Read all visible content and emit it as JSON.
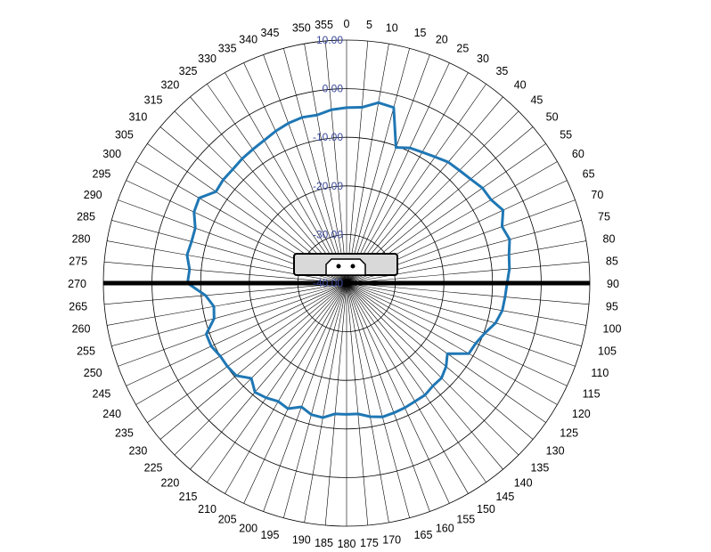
{
  "chart_data": {
    "type": "polar-line",
    "angle_unit": "degrees",
    "angle_zero": "top",
    "angle_direction": "clockwise",
    "angle_ticks": [
      0,
      5,
      10,
      15,
      20,
      25,
      30,
      35,
      40,
      45,
      50,
      55,
      60,
      65,
      70,
      75,
      80,
      85,
      90,
      95,
      100,
      105,
      110,
      115,
      120,
      125,
      130,
      135,
      140,
      145,
      150,
      155,
      160,
      165,
      170,
      175,
      180,
      185,
      190,
      195,
      200,
      205,
      210,
      215,
      220,
      225,
      230,
      235,
      240,
      245,
      250,
      255,
      260,
      265,
      270,
      275,
      280,
      285,
      290,
      295,
      300,
      305,
      310,
      315,
      320,
      325,
      330,
      335,
      340,
      345,
      350,
      355
    ],
    "radial_range": [
      -40,
      10
    ],
    "radial_ticks": [
      {
        "value": 10,
        "label": "10.00"
      },
      {
        "value": 0,
        "label": "0.00"
      },
      {
        "value": -10,
        "label": "-10.00"
      },
      {
        "value": -20,
        "label": "-20.00"
      },
      {
        "value": -30,
        "label": "-30.00"
      },
      {
        "value": -40,
        "label": "-40.00"
      }
    ],
    "grid": true,
    "series": [
      {
        "color": "#1f77b4",
        "points": [
          {
            "angle": 0,
            "value": -3.9
          },
          {
            "angle": 5,
            "value": -3.7
          },
          {
            "angle": 10,
            "value": -2.3
          },
          {
            "angle": 15,
            "value": -2.6
          },
          {
            "angle": 20,
            "value": -10.3
          },
          {
            "angle": 25,
            "value": -9.3
          },
          {
            "angle": 30,
            "value": -8.9
          },
          {
            "angle": 35,
            "value": -8.3
          },
          {
            "angle": 40,
            "value": -7.5
          },
          {
            "angle": 45,
            "value": -7.2
          },
          {
            "angle": 50,
            "value": -6.7
          },
          {
            "angle": 55,
            "value": -5.9
          },
          {
            "angle": 60,
            "value": -5.7
          },
          {
            "angle": 65,
            "value": -4.5
          },
          {
            "angle": 70,
            "value": -6.0
          },
          {
            "angle": 75,
            "value": -5.3
          },
          {
            "angle": 80,
            "value": -6.1
          },
          {
            "angle": 85,
            "value": -6.4
          },
          {
            "angle": 90,
            "value": -7.0
          },
          {
            "angle": 95,
            "value": -7.3
          },
          {
            "angle": 100,
            "value": -7.5
          },
          {
            "angle": 105,
            "value": -8.3
          },
          {
            "angle": 110,
            "value": -9.8
          },
          {
            "angle": 115,
            "value": -10.7
          },
          {
            "angle": 120,
            "value": -11.0
          },
          {
            "angle": 125,
            "value": -14.7
          },
          {
            "angle": 130,
            "value": -13.3
          },
          {
            "angle": 135,
            "value": -12.4
          },
          {
            "angle": 140,
            "value": -12.4
          },
          {
            "angle": 145,
            "value": -11.9
          },
          {
            "angle": 150,
            "value": -11.9
          },
          {
            "angle": 155,
            "value": -11.7
          },
          {
            "angle": 160,
            "value": -11.6
          },
          {
            "angle": 165,
            "value": -11.5
          },
          {
            "angle": 170,
            "value": -12.1
          },
          {
            "angle": 175,
            "value": -13.0
          },
          {
            "angle": 180,
            "value": -13.0
          },
          {
            "angle": 185,
            "value": -13.0
          },
          {
            "angle": 190,
            "value": -11.9
          },
          {
            "angle": 195,
            "value": -12.0
          },
          {
            "angle": 200,
            "value": -12.9
          },
          {
            "angle": 205,
            "value": -11.5
          },
          {
            "angle": 210,
            "value": -11.9
          },
          {
            "angle": 215,
            "value": -11.2
          },
          {
            "angle": 220,
            "value": -10.7
          },
          {
            "angle": 225,
            "value": -12.3
          },
          {
            "angle": 230,
            "value": -10.4
          },
          {
            "angle": 235,
            "value": -10.1
          },
          {
            "angle": 240,
            "value": -10.0
          },
          {
            "angle": 245,
            "value": -9.3
          },
          {
            "angle": 250,
            "value": -9.3
          },
          {
            "angle": 255,
            "value": -11.8
          },
          {
            "angle": 260,
            "value": -12.3
          },
          {
            "angle": 265,
            "value": -10.9
          },
          {
            "angle": 270,
            "value": -7.3
          },
          {
            "angle": 275,
            "value": -7.6
          },
          {
            "angle": 280,
            "value": -6.7
          },
          {
            "angle": 285,
            "value": -7.0
          },
          {
            "angle": 290,
            "value": -6.9
          },
          {
            "angle": 295,
            "value": -5.4
          },
          {
            "angle": 300,
            "value": -5.0
          },
          {
            "angle": 305,
            "value": -7.2
          },
          {
            "angle": 310,
            "value": -6.9
          },
          {
            "angle": 315,
            "value": -6.9
          },
          {
            "angle": 320,
            "value": -6.6
          },
          {
            "angle": 325,
            "value": -6.4
          },
          {
            "angle": 330,
            "value": -6.1
          },
          {
            "angle": 335,
            "value": -5.5
          },
          {
            "angle": 340,
            "value": -5.0
          },
          {
            "angle": 345,
            "value": -4.7
          },
          {
            "angle": 350,
            "value": -4.9
          },
          {
            "angle": 355,
            "value": -4.2
          }
        ]
      }
    ],
    "reference_line": {
      "angles": [
        90,
        270
      ]
    },
    "device_icon": "antenna-device-icon"
  }
}
